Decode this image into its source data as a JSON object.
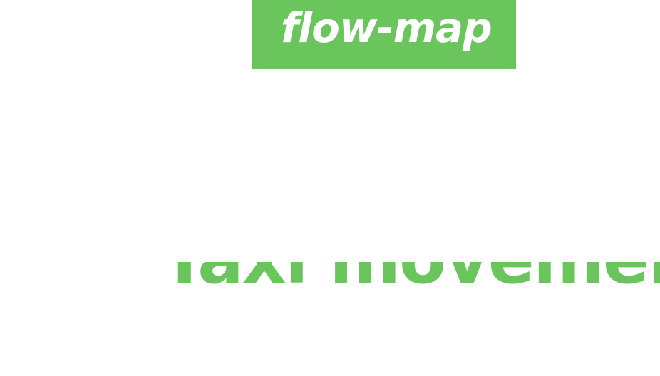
{
  "badge": {
    "label": "flow-map",
    "background_color": "#6ac55c",
    "text_color": "#ffffff"
  },
  "headline": {
    "text": "Taxi movements",
    "color": "#6ac55c"
  }
}
